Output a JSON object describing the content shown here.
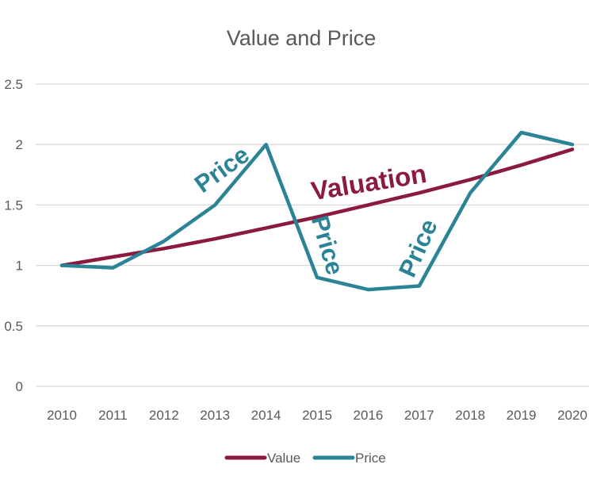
{
  "chart_data": {
    "type": "line",
    "title": "Value and Price",
    "xlabel": "",
    "ylabel": "",
    "categories": [
      "2010",
      "2011",
      "2012",
      "2013",
      "2014",
      "2015",
      "2016",
      "2017",
      "2018",
      "2019",
      "2020"
    ],
    "ylim": [
      0,
      2.5
    ],
    "y_ticks": [
      "0",
      "0.5",
      "1",
      "1.5",
      "2",
      "2.5"
    ],
    "grid": true,
    "legend_position": "bottom",
    "series": [
      {
        "name": "Value",
        "color": "#8B1A3F",
        "values": [
          1.0,
          1.07,
          1.14,
          1.22,
          1.31,
          1.4,
          1.5,
          1.6,
          1.71,
          1.83,
          1.96
        ]
      },
      {
        "name": "Price",
        "color": "#2A8496",
        "values": [
          1.0,
          0.98,
          1.2,
          1.5,
          2.0,
          0.9,
          0.8,
          0.83,
          1.6,
          2.1,
          2.0
        ]
      }
    ],
    "annotations": [
      {
        "text": "Price",
        "color": "#2A8496"
      },
      {
        "text": "Valuation",
        "color": "#8B1A3F"
      },
      {
        "text": "Price",
        "color": "#2A8496"
      },
      {
        "text": "Price",
        "color": "#2A8496"
      }
    ]
  }
}
